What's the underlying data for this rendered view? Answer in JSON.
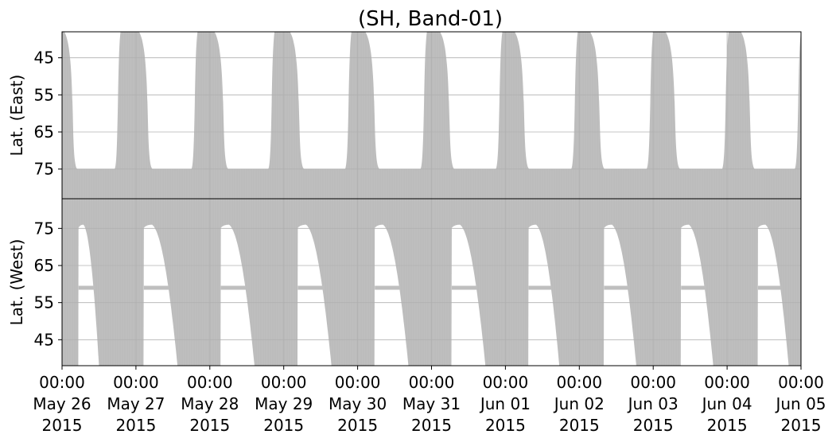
{
  "chart_data": [
    {
      "panel": "top",
      "type": "area",
      "title": "(SH, Band-01)",
      "ylabel": "Lat. (East)",
      "y_inverted": true,
      "ylim": [
        38,
        83
      ],
      "yticks": [
        "45",
        "55",
        "65",
        "75"
      ],
      "ytick_values": [
        45,
        55,
        65,
        75
      ],
      "grid": true,
      "fill_color": "#bfbfbf",
      "gap_color": "#ffffff",
      "x_start": "2015-05-26 00:00",
      "x_end": "2015-06-05 00:00",
      "coverage_description_days": [
        "2015-05-26",
        "2015-05-27",
        "2015-05-28",
        "2015-05-29",
        "2015-05-30",
        "2015-05-31",
        "2015-06-01",
        "2015-06-02",
        "2015-06-03",
        "2015-06-04"
      ],
      "gaps": [
        {
          "start": "2015-05-26 00:45",
          "end": "2015-05-26 19:00",
          "min_lat": 75
        },
        {
          "start": "2015-05-27 01:00",
          "end": "2015-05-27 20:00",
          "min_lat": 75
        },
        {
          "start": "2015-05-28 01:30",
          "end": "2015-05-28 21:00",
          "min_lat": 75
        },
        {
          "start": "2015-05-29 02:00",
          "end": "2015-05-29 22:00",
          "min_lat": 75
        },
        {
          "start": "2015-05-30 02:30",
          "end": "2015-05-30 22:30",
          "min_lat": 75
        },
        {
          "start": "2015-05-31 02:45",
          "end": "2015-05-31 23:00",
          "min_lat": 75
        },
        {
          "start": "2015-06-01 03:00",
          "end": "2015-06-01 23:30",
          "min_lat": 75
        },
        {
          "start": "2015-06-02 03:30",
          "end": "2015-06-03 00:00",
          "min_lat": 75
        },
        {
          "start": "2015-06-03 04:00",
          "end": "2015-06-04 00:30",
          "min_lat": 75
        },
        {
          "start": "2015-06-04 04:30",
          "end": "2015-06-05 00:00",
          "min_lat": 75
        }
      ]
    },
    {
      "panel": "bottom",
      "type": "area",
      "ylabel": "Lat. (West)",
      "ylim": [
        38,
        83
      ],
      "yticks": [
        "45",
        "55",
        "65",
        "75"
      ],
      "ytick_values": [
        45,
        55,
        65,
        75
      ],
      "grid": true,
      "fill_color": "#bfbfbf",
      "gap_color": "#ffffff",
      "band_lat": 59,
      "xticks": [
        {
          "time": "00:00",
          "date": "May 26",
          "year": "2015"
        },
        {
          "time": "00:00",
          "date": "May 27",
          "year": "2015"
        },
        {
          "time": "00:00",
          "date": "May 28",
          "year": "2015"
        },
        {
          "time": "00:00",
          "date": "May 29",
          "year": "2015"
        },
        {
          "time": "00:00",
          "date": "May 30",
          "year": "2015"
        },
        {
          "time": "00:00",
          "date": "May 31",
          "year": "2015"
        },
        {
          "time": "00:00",
          "date": "Jun 01",
          "year": "2015"
        },
        {
          "time": "00:00",
          "date": "Jun 02",
          "year": "2015"
        },
        {
          "time": "00:00",
          "date": "Jun 03",
          "year": "2015"
        },
        {
          "time": "00:00",
          "date": "Jun 04",
          "year": "2015"
        },
        {
          "time": "00:00",
          "date": "Jun 05",
          "year": "2015"
        }
      ],
      "gaps": [
        {
          "start": "2015-05-26 05:00",
          "end": "2015-05-26 12:00",
          "max_lat": 76
        },
        {
          "start": "2015-05-27 02:00",
          "end": "2015-05-27 13:30",
          "max_lat": 76
        },
        {
          "start": "2015-05-28 03:00",
          "end": "2015-05-28 14:30",
          "max_lat": 76
        },
        {
          "start": "2015-05-29 04:00",
          "end": "2015-05-29 15:30",
          "max_lat": 76
        },
        {
          "start": "2015-05-30 05:00",
          "end": "2015-05-30 16:30",
          "max_lat": 76
        },
        {
          "start": "2015-05-31 06:00",
          "end": "2015-05-31 17:30",
          "max_lat": 76
        },
        {
          "start": "2015-06-01 07:00",
          "end": "2015-06-01 17:30",
          "max_lat": 76
        },
        {
          "start": "2015-06-02 07:30",
          "end": "2015-06-02 18:30",
          "max_lat": 76
        },
        {
          "start": "2015-06-03 08:30",
          "end": "2015-06-03 19:30",
          "max_lat": 76
        },
        {
          "start": "2015-06-04 09:30",
          "end": "2015-06-04 20:00",
          "max_lat": 76
        }
      ]
    }
  ]
}
